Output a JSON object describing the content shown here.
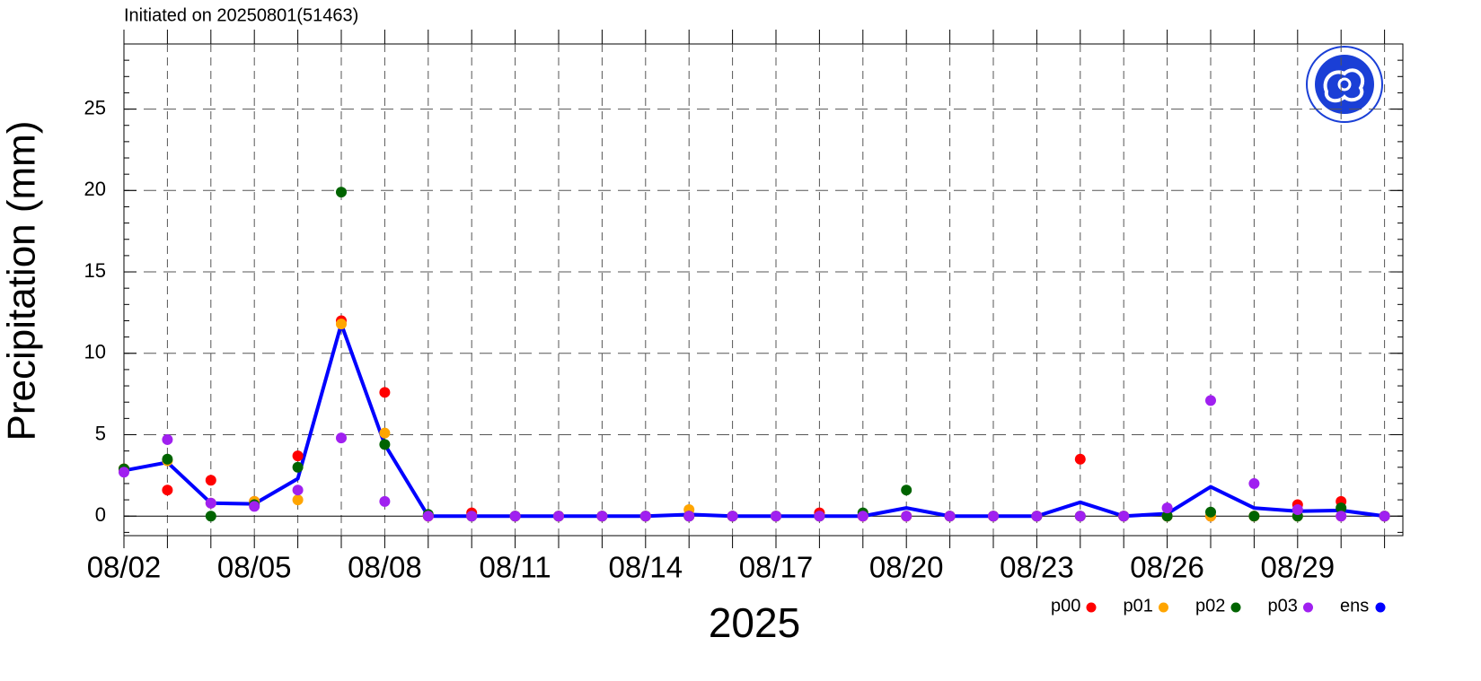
{
  "chart_data": {
    "type": "line",
    "title": "Initiated on 20250801(51463)",
    "ylabel": "Precipitation (mm)",
    "xlabel": "2025",
    "categories": [
      "08/02",
      null,
      null,
      "08/05",
      null,
      null,
      "08/08",
      null,
      null,
      "08/11",
      null,
      null,
      "08/14",
      null,
      null,
      "08/17",
      null,
      null,
      "08/20",
      null,
      null,
      "08/23",
      null,
      null,
      "08/26",
      null,
      null,
      "08/29",
      null,
      null
    ],
    "ylim": [
      -1.2,
      29
    ],
    "yticks": [
      0,
      5,
      10,
      15,
      20,
      25
    ],
    "grid": true,
    "legend": "bottom-right",
    "series": [
      {
        "name": "p00",
        "color": "#ff0000",
        "style": "markers",
        "values": [
          2.9,
          1.6,
          2.2,
          0.9,
          3.7,
          12.0,
          7.6,
          0,
          0.2,
          0,
          0,
          0,
          0,
          0,
          0,
          0,
          0.2,
          0,
          0,
          0,
          0,
          0,
          3.5,
          0,
          0,
          0,
          0,
          0.7,
          0.9,
          0
        ]
      },
      {
        "name": "p01",
        "color": "#ffa500",
        "style": "markers",
        "values": [
          2.9,
          3.4,
          0.8,
          0.9,
          1.0,
          11.8,
          5.1,
          0,
          0,
          0,
          0,
          0,
          0,
          0.4,
          0,
          0,
          0,
          0,
          0,
          0,
          0,
          0,
          0,
          0,
          0,
          0,
          0,
          0,
          0,
          0
        ]
      },
      {
        "name": "p02",
        "color": "#006400",
        "style": "markers",
        "values": [
          2.9,
          3.5,
          0,
          0.7,
          3.0,
          19.9,
          4.4,
          0.1,
          0,
          0,
          0,
          0,
          0,
          0,
          0,
          0,
          0,
          0.2,
          1.6,
          0,
          0,
          0,
          0,
          0,
          0,
          0.25,
          0,
          0,
          0.5,
          0
        ]
      },
      {
        "name": "p03",
        "color": "#a020f0",
        "style": "markers",
        "values": [
          2.7,
          4.7,
          0.8,
          0.6,
          1.6,
          4.8,
          0.9,
          0,
          0,
          0,
          0,
          0,
          0,
          0,
          0,
          0,
          0,
          0,
          0,
          0,
          0,
          0,
          0,
          0,
          0.5,
          7.1,
          2.0,
          0.4,
          0,
          0
        ]
      },
      {
        "name": "ens",
        "color": "#0000ff",
        "style": "line",
        "values": [
          2.8,
          3.3,
          0.8,
          0.75,
          2.3,
          11.8,
          4.4,
          0,
          0,
          0,
          0,
          0,
          0,
          0.1,
          0,
          0,
          0,
          0,
          0.5,
          0,
          0,
          0,
          0.85,
          0,
          0.15,
          1.8,
          0.5,
          0.3,
          0.35,
          0
        ]
      }
    ]
  }
}
